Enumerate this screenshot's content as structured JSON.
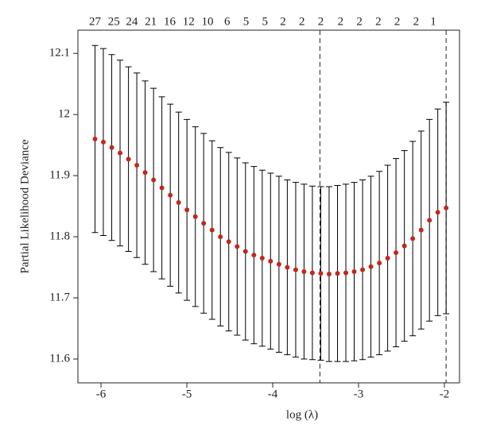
{
  "chart_data": {
    "type": "errorbar",
    "xlabel": "log (λ)",
    "ylabel": "Partial Likelihood Deviance",
    "x": [
      -6.07,
      -5.973,
      -5.875,
      -5.778,
      -5.68,
      -5.583,
      -5.486,
      -5.388,
      -5.291,
      -5.193,
      -5.096,
      -4.999,
      -4.901,
      -4.804,
      -4.706,
      -4.609,
      -4.512,
      -4.414,
      -4.317,
      -4.219,
      -4.122,
      -4.025,
      -3.927,
      -3.83,
      -3.732,
      -3.635,
      -3.538,
      -3.44,
      -3.343,
      -3.245,
      -3.148,
      -3.051,
      -2.953,
      -2.856,
      -2.758,
      -2.661,
      -2.564,
      -2.466,
      -2.369,
      -2.271,
      -2.174,
      -2.077,
      -1.98
    ],
    "values": [
      11.96,
      11.955,
      11.946,
      11.937,
      11.927,
      11.917,
      11.905,
      11.893,
      11.88,
      11.868,
      11.856,
      11.844,
      11.833,
      11.822,
      11.811,
      11.8,
      11.792,
      11.784,
      11.776,
      11.77,
      11.765,
      11.76,
      11.755,
      11.75,
      11.746,
      11.743,
      11.741,
      11.74,
      11.739,
      11.74,
      11.741,
      11.743,
      11.746,
      11.751,
      11.757,
      11.765,
      11.774,
      11.785,
      11.797,
      11.811,
      11.827,
      11.84,
      11.847
    ],
    "errors": [
      0.153,
      0.153,
      0.152,
      0.152,
      0.151,
      0.151,
      0.15,
      0.15,
      0.149,
      0.149,
      0.148,
      0.148,
      0.147,
      0.147,
      0.146,
      0.146,
      0.146,
      0.145,
      0.145,
      0.145,
      0.144,
      0.144,
      0.144,
      0.143,
      0.143,
      0.143,
      0.142,
      0.142,
      0.143,
      0.144,
      0.145,
      0.146,
      0.147,
      0.148,
      0.15,
      0.152,
      0.154,
      0.156,
      0.159,
      0.162,
      0.165,
      0.169,
      0.173
    ],
    "point_color": "#c0281e",
    "bar_color": "#000000",
    "vlines": [
      -3.45,
      -1.98
    ],
    "top_x": [
      -6.07,
      -5.85,
      -5.64,
      -5.42,
      -5.2,
      -4.98,
      -4.76,
      -4.53,
      -4.31,
      -4.09,
      -3.88,
      -3.66,
      -3.44,
      -3.21,
      -2.99,
      -2.77,
      -2.55,
      -2.33,
      -2.13
    ],
    "top_labels": [
      27,
      25,
      24,
      21,
      16,
      12,
      10,
      6,
      5,
      5,
      2,
      2,
      2,
      2,
      2,
      2,
      2,
      2,
      1
    ],
    "xlim": [
      -6.269,
      -1.824
    ],
    "xticks": [
      -6,
      -5,
      -4,
      -3,
      -2
    ],
    "ylim": [
      11.561,
      12.138
    ],
    "yticks": [
      11.6,
      11.7,
      11.8,
      11.9,
      12.0,
      12.1
    ]
  }
}
